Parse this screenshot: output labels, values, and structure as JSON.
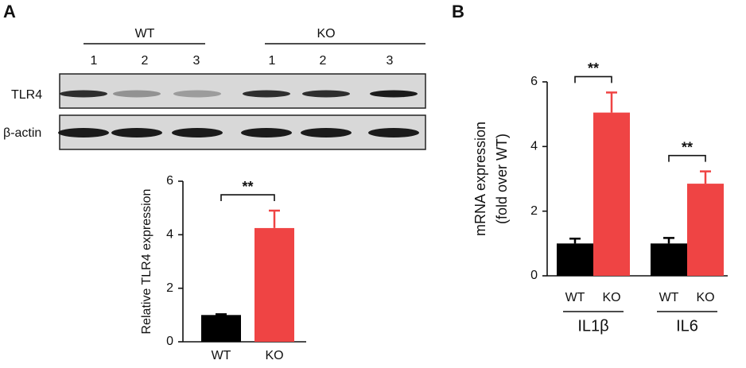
{
  "panel_labels": [
    "A",
    "B"
  ],
  "blot": {
    "groups": [
      {
        "label": "WT",
        "lanes": [
          "1",
          "2",
          "3"
        ]
      },
      {
        "label": "KO",
        "lanes": [
          "1",
          "2",
          "3"
        ]
      }
    ],
    "rows": [
      "TLR4",
      "β-actin"
    ]
  },
  "chart_data": [
    {
      "type": "bar",
      "ylabel": "Relative TLR4 expression",
      "categories": [
        "WT",
        "KO"
      ],
      "values": [
        1.0,
        4.25
      ],
      "errors": [
        0.03,
        0.65
      ],
      "colors": [
        "#000000",
        "#ef4444"
      ],
      "ylim": [
        0,
        6
      ],
      "yticks": [
        0,
        2,
        4,
        6
      ],
      "annotations": [
        "**"
      ]
    },
    {
      "type": "grouped_bar",
      "ylabel": [
        "mRNA expression",
        "(fold over WT)"
      ],
      "categories": [
        "IL1β",
        "IL6"
      ],
      "series": [
        {
          "name": "WT",
          "color": "#000000",
          "values": [
            1.0,
            1.0
          ],
          "errors": [
            0.15,
            0.17
          ]
        },
        {
          "name": "KO",
          "color": "#ef4444",
          "values": [
            5.05,
            2.85
          ],
          "errors": [
            0.62,
            0.38
          ]
        }
      ],
      "ylim": [
        0,
        6
      ],
      "yticks": [
        0,
        2,
        4,
        6
      ],
      "annotations": [
        "**",
        "**"
      ]
    }
  ]
}
